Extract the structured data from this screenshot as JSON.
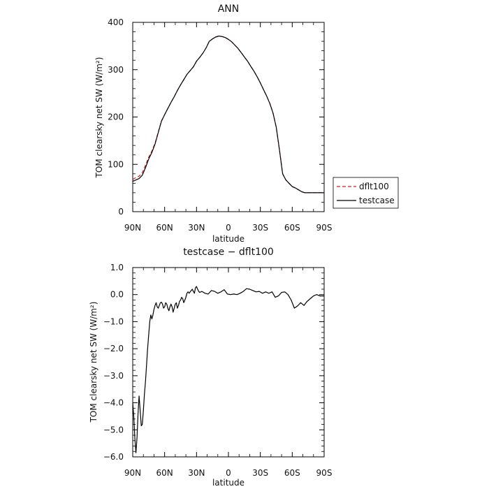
{
  "chart_data": [
    {
      "type": "line",
      "title": "ANN",
      "xlabel": "latitude",
      "ylabel": "TOM clearsky net SW (W/m²)",
      "xlim": [
        90,
        -90
      ],
      "ylim": [
        0,
        400
      ],
      "grid": false,
      "xticks": [
        90,
        60,
        30,
        0,
        -30,
        -60,
        -90
      ],
      "xtick_labels": [
        "90N",
        "60N",
        "30N",
        "0",
        "30S",
        "60S",
        "90S"
      ],
      "yticks": [
        0,
        100,
        200,
        300,
        400
      ],
      "ytick_labels": [
        "0",
        "100",
        "200",
        "300",
        "400"
      ],
      "legend": {
        "position": "right",
        "entries": [
          "dflt100",
          "testcase"
        ]
      },
      "series": [
        {
          "name": "dflt100",
          "color": "#d42020",
          "dash": "dashed",
          "x": [
            90,
            87,
            84,
            81,
            78,
            75,
            72,
            69,
            66,
            63,
            60,
            57,
            54,
            51,
            48,
            45,
            42,
            39,
            36,
            33,
            30,
            27,
            24,
            21,
            18,
            15,
            12,
            9,
            6,
            3,
            0,
            -3,
            -6,
            -9,
            -12,
            -15,
            -18,
            -21,
            -24,
            -27,
            -30,
            -33,
            -36,
            -39,
            -42,
            -45,
            -48,
            -51,
            -54,
            -57,
            -60,
            -63,
            -66,
            -69,
            -72,
            -75,
            -78,
            -81,
            -84,
            -87,
            -90
          ],
          "y": [
            68,
            72,
            75,
            82,
            98,
            115,
            128,
            145,
            168,
            192,
            205,
            218,
            231,
            243,
            256,
            268,
            279,
            290,
            298,
            306,
            318,
            326,
            335,
            346,
            360,
            365,
            369,
            371,
            370,
            368,
            364,
            359,
            352,
            345,
            336,
            327,
            318,
            307,
            297,
            285,
            272,
            258,
            244,
            228,
            208,
            178,
            130,
            80,
            67,
            60,
            53,
            50,
            46,
            42,
            40,
            40,
            40,
            40,
            40,
            40,
            40
          ]
        },
        {
          "name": "testcase",
          "color": "#000000",
          "dash": "solid",
          "x": [
            90,
            87,
            84,
            81,
            78,
            75,
            72,
            69,
            66,
            63,
            60,
            57,
            54,
            51,
            48,
            45,
            42,
            39,
            36,
            33,
            30,
            27,
            24,
            21,
            18,
            15,
            12,
            9,
            6,
            3,
            0,
            -3,
            -6,
            -9,
            -12,
            -15,
            -18,
            -21,
            -24,
            -27,
            -30,
            -33,
            -36,
            -39,
            -42,
            -45,
            -48,
            -51,
            -54,
            -57,
            -60,
            -63,
            -66,
            -69,
            -72,
            -75,
            -78,
            -81,
            -84,
            -87,
            -90
          ],
          "y": [
            64,
            67,
            70,
            77,
            93,
            111,
            125,
            143,
            167,
            191,
            205,
            218,
            231,
            243,
            256,
            268,
            279,
            290,
            298,
            306,
            318,
            326,
            335,
            346,
            360,
            365,
            369,
            371,
            370,
            368,
            364,
            359,
            352,
            345,
            336,
            327,
            318,
            307,
            297,
            285,
            272,
            258,
            244,
            228,
            208,
            178,
            130,
            80,
            67,
            60,
            53,
            50,
            46,
            42,
            40,
            40,
            40,
            40,
            40,
            40,
            40
          ]
        }
      ]
    },
    {
      "type": "line",
      "title": "testcase − dflt100",
      "xlabel": "latitude",
      "ylabel": "TOM clearsky net SW (W/m²)",
      "xlim": [
        90,
        -90
      ],
      "ylim": [
        -6.0,
        1.0
      ],
      "grid": false,
      "xticks": [
        90,
        60,
        30,
        0,
        -30,
        -60,
        -90
      ],
      "xtick_labels": [
        "90N",
        "60N",
        "30N",
        "0",
        "30S",
        "60S",
        "90S"
      ],
      "yticks": [
        1.0,
        0.0,
        -1.0,
        -2.0,
        -3.0,
        -4.0,
        -5.0,
        -6.0
      ],
      "ytick_labels": [
        "1.0",
        "0.0",
        "−1.0",
        "−2.0",
        "−3.0",
        "−4.0",
        "−5.0",
        "−6.0"
      ],
      "series": [
        {
          "color": "#000000",
          "dash": "solid",
          "x": [
            90,
            89,
            88,
            87,
            86,
            85,
            84,
            83,
            82,
            81,
            80,
            79,
            78,
            77,
            76,
            75,
            74,
            73,
            72,
            71,
            70,
            69,
            68,
            67,
            66,
            65,
            64,
            63,
            62,
            61,
            60,
            59,
            58,
            57,
            56,
            55,
            54,
            53,
            52,
            51,
            50,
            49,
            48,
            47,
            46,
            45,
            44,
            43,
            42,
            41,
            40,
            39,
            38,
            37,
            36,
            35,
            34,
            33,
            32,
            31,
            30,
            29,
            28,
            27,
            25,
            22,
            19,
            16,
            13,
            10,
            7,
            4,
            1,
            -2,
            -5,
            -8,
            -11,
            -14,
            -17,
            -20,
            -23,
            -26,
            -29,
            -32,
            -35,
            -38,
            -41,
            -44,
            -47,
            -50,
            -53,
            -56,
            -59,
            -62,
            -65,
            -68,
            -71,
            -74,
            -77,
            -80,
            -83,
            -86,
            -87,
            -89,
            -90
          ],
          "y": [
            -4.0,
            -4.5,
            -5.3,
            -5.85,
            -5.3,
            -4.4,
            -3.75,
            -4.3,
            -4.85,
            -4.8,
            -4.3,
            -3.7,
            -3.2,
            -2.6,
            -2.0,
            -1.5,
            -1.0,
            -0.75,
            -0.9,
            -0.75,
            -0.55,
            -0.4,
            -0.3,
            -0.45,
            -0.5,
            -0.4,
            -0.3,
            -0.28,
            -0.35,
            -0.5,
            -0.45,
            -0.3,
            -0.35,
            -0.5,
            -0.6,
            -0.45,
            -0.35,
            -0.45,
            -0.65,
            -0.5,
            -0.35,
            -0.3,
            -0.5,
            -0.4,
            -0.25,
            -0.2,
            -0.1,
            -0.15,
            -0.3,
            -0.2,
            -0.1,
            0.05,
            0.1,
            0.05,
            0.1,
            0.15,
            0.2,
            0.12,
            0.05,
            0.25,
            0.3,
            0.2,
            0.12,
            0.08,
            0.12,
            0.05,
            0.02,
            0.15,
            0.12,
            0.05,
            0.1,
            0.18,
            0.02,
            0.0,
            0.02,
            0.0,
            0.05,
            0.12,
            0.22,
            0.2,
            0.15,
            0.1,
            0.12,
            0.05,
            0.1,
            0.05,
            0.1,
            -0.1,
            -0.05,
            0.08,
            0.1,
            0.0,
            -0.2,
            -0.5,
            -0.42,
            -0.3,
            -0.4,
            -0.25,
            -0.15,
            -0.05,
            0.0,
            -0.05,
            -0.05,
            -0.05,
            -0.05
          ]
        }
      ]
    }
  ]
}
